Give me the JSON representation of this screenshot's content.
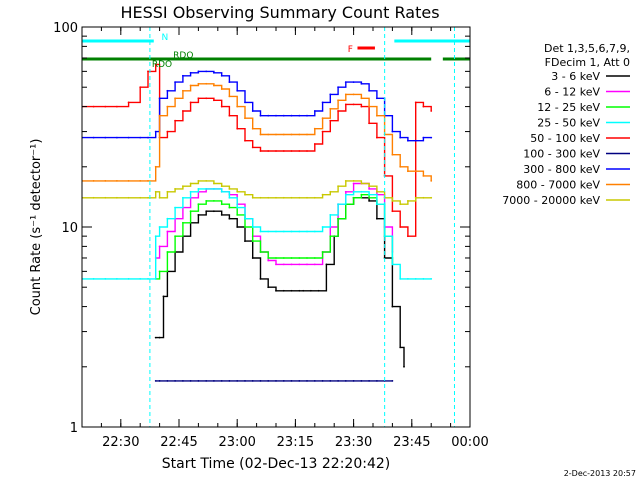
{
  "chart_data": {
    "type": "line",
    "title": "HESSI Observing Summary Count Rates",
    "xlabel": "Start Time (02-Dec-13 22:20:42)",
    "ylabel": "Count Rate (s⁻¹ detector⁻¹)",
    "yscale": "log",
    "ylim": [
      1,
      100
    ],
    "xlim": [
      0,
      100
    ],
    "x_unit": "minutes after 22:20",
    "x_ticks": [
      {
        "label": "22:30",
        "x": 10
      },
      {
        "label": "22:45",
        "x": 25
      },
      {
        "label": "23:00",
        "x": 40
      },
      {
        "label": "23:15",
        "x": 55
      },
      {
        "label": "23:30",
        "x": 70
      },
      {
        "label": "23:45",
        "x": 85
      },
      {
        "label": "00:00",
        "x": 100
      }
    ],
    "y_ticks": [
      {
        "label": "1",
        "y": 1
      },
      {
        "label": "10",
        "y": 10
      },
      {
        "label": "100",
        "y": 100
      }
    ],
    "legend_title_lines": [
      "Det 1,3,5,6,7,9,",
      "FDecim 1, Att 0"
    ],
    "legend_position": "right",
    "footer_date": "2-Dec-2013 20:57",
    "series": [
      {
        "name": "3 - 6 keV",
        "color": "#000000",
        "x": [
          19,
          20,
          21,
          22,
          24,
          26,
          28,
          30,
          32,
          34,
          36,
          38,
          40,
          42,
          44,
          46,
          48,
          50,
          52,
          54,
          56,
          57,
          59,
          61,
          63,
          65,
          66,
          68,
          70,
          72,
          74,
          76,
          78,
          80,
          82,
          83
        ],
        "y": [
          2.8,
          2.8,
          4.5,
          6.0,
          7.5,
          9.0,
          10.5,
          11.5,
          12.0,
          12.0,
          11.5,
          11.0,
          10.0,
          8.5,
          7.0,
          5.5,
          5.0,
          4.8,
          4.8,
          4.8,
          4.8,
          4.8,
          4.8,
          4.8,
          6.5,
          9.0,
          11.0,
          13.0,
          14.0,
          14.0,
          13.5,
          11.0,
          7.0,
          4.0,
          2.5,
          2.0
        ]
      },
      {
        "name": "6 - 12 keV",
        "color": "#ff00ff",
        "x": [
          19,
          20,
          22,
          24,
          26,
          28,
          30,
          32,
          34,
          36,
          38,
          40,
          42,
          44,
          46,
          48,
          50,
          52,
          54,
          56,
          58,
          60,
          62,
          64,
          66,
          68,
          70,
          72,
          74,
          76,
          78,
          80
        ],
        "y": [
          7.0,
          8.0,
          9.5,
          11.0,
          12.5,
          14.0,
          15.0,
          15.5,
          15.5,
          15.0,
          14.5,
          13.0,
          11.0,
          9.0,
          7.5,
          6.8,
          6.5,
          6.5,
          6.5,
          6.5,
          6.5,
          6.5,
          7.5,
          10.0,
          13.0,
          15.0,
          16.5,
          16.5,
          15.5,
          14.5,
          10.0,
          7.5
        ]
      },
      {
        "name": "12 - 25 keV",
        "color": "#00ff00",
        "x": [
          19,
          20,
          22,
          24,
          26,
          28,
          30,
          32,
          34,
          36,
          38,
          40,
          42,
          44,
          46,
          48,
          50,
          52,
          54,
          56,
          58,
          60,
          62,
          64,
          66,
          68,
          70,
          72,
          74,
          76,
          78,
          80
        ],
        "y": [
          5.5,
          6.0,
          7.5,
          9.0,
          10.5,
          12.0,
          13.0,
          13.5,
          13.5,
          13.0,
          12.5,
          11.5,
          10.0,
          8.5,
          7.5,
          7.0,
          7.0,
          7.0,
          7.0,
          7.0,
          7.0,
          7.0,
          7.5,
          9.0,
          11.0,
          13.0,
          14.0,
          14.5,
          14.0,
          13.0,
          9.0,
          6.5
        ]
      },
      {
        "name": "25 - 50 keV",
        "color": "#00ffff",
        "x": [
          0,
          3,
          6,
          9,
          12,
          15,
          17,
          19,
          20,
          22,
          24,
          26,
          28,
          30,
          32,
          34,
          36,
          38,
          40,
          42,
          44,
          46,
          48,
          50,
          52,
          54,
          56,
          58,
          60,
          62,
          64,
          66,
          68,
          70,
          72,
          74,
          76,
          78,
          80,
          82,
          84,
          86,
          88,
          90
        ],
        "y": [
          5.5,
          5.5,
          5.5,
          5.5,
          5.5,
          5.5,
          5.5,
          9.0,
          10.0,
          11.0,
          12.5,
          14.0,
          15.0,
          15.5,
          15.5,
          15.5,
          15.0,
          14.0,
          12.5,
          11.0,
          10.0,
          9.5,
          9.5,
          9.5,
          9.5,
          9.5,
          9.5,
          9.5,
          9.5,
          10.0,
          11.5,
          13.0,
          14.5,
          15.0,
          15.0,
          14.5,
          13.0,
          9.0,
          6.5,
          5.5,
          5.5,
          5.5,
          5.5,
          5.5
        ]
      },
      {
        "name": "50 - 100 keV",
        "color": "#ff0000",
        "x": [
          0,
          3,
          6,
          9,
          12,
          15,
          17,
          19,
          20,
          22,
          24,
          26,
          28,
          30,
          32,
          34,
          36,
          38,
          40,
          42,
          44,
          46,
          48,
          50,
          52,
          54,
          56,
          58,
          60,
          62,
          64,
          66,
          68,
          70,
          72,
          74,
          76,
          78,
          80,
          82,
          84,
          86,
          88,
          90
        ],
        "y": [
          40,
          40,
          40,
          40,
          42,
          50,
          60,
          65,
          28,
          30,
          34,
          38,
          42,
          44,
          44,
          43,
          40,
          36,
          31,
          27,
          25,
          24,
          24,
          24,
          24,
          24,
          24,
          24,
          26,
          30,
          34,
          38,
          41,
          41,
          40,
          33,
          28,
          18,
          12,
          10,
          9,
          42,
          40,
          38
        ]
      },
      {
        "name": "100 - 300 keV",
        "color": "#000080",
        "x": [
          19,
          20,
          22,
          24,
          26,
          28,
          30,
          32,
          34,
          36,
          38,
          40,
          42,
          44,
          46,
          48,
          50,
          52,
          54,
          56,
          58,
          60,
          62,
          64,
          66,
          68,
          70,
          72,
          74,
          76,
          78,
          80
        ],
        "y": [
          1.7,
          1.7,
          1.7,
          1.7,
          1.7,
          1.7,
          1.7,
          1.7,
          1.7,
          1.7,
          1.7,
          1.7,
          1.7,
          1.7,
          1.7,
          1.7,
          1.7,
          1.7,
          1.7,
          1.7,
          1.7,
          1.7,
          1.7,
          1.7,
          1.7,
          1.7,
          1.7,
          1.7,
          1.7,
          1.7,
          1.7,
          1.7
        ]
      },
      {
        "name": "300 - 800 keV",
        "color": "#0000ff",
        "x": [
          0,
          3,
          6,
          9,
          12,
          15,
          17,
          19,
          20,
          22,
          24,
          26,
          28,
          30,
          32,
          34,
          36,
          38,
          40,
          42,
          44,
          46,
          48,
          50,
          52,
          54,
          56,
          58,
          60,
          62,
          64,
          66,
          68,
          70,
          72,
          74,
          76,
          78,
          80,
          82,
          84,
          86,
          88,
          90
        ],
        "y": [
          28,
          28,
          28,
          28,
          28,
          28,
          28,
          30,
          44,
          48,
          53,
          57,
          59,
          60,
          60,
          59,
          57,
          53,
          48,
          42,
          38,
          36,
          36,
          36,
          36,
          36,
          36,
          36,
          38,
          42,
          46,
          50,
          53,
          53,
          52,
          48,
          44,
          36,
          30,
          28,
          27,
          27,
          28,
          28
        ]
      },
      {
        "name": "800 - 7000 keV",
        "color": "#ff8000",
        "x": [
          0,
          3,
          6,
          9,
          12,
          15,
          17,
          19,
          20,
          22,
          24,
          26,
          28,
          30,
          32,
          34,
          36,
          38,
          40,
          42,
          44,
          46,
          48,
          50,
          52,
          54,
          56,
          58,
          60,
          62,
          64,
          66,
          68,
          70,
          72,
          74,
          76,
          78,
          80,
          82,
          84,
          86,
          88,
          90
        ],
        "y": [
          17,
          17,
          17,
          17,
          17,
          17,
          17,
          20,
          36,
          40,
          44,
          48,
          51,
          52,
          52,
          51,
          49,
          45,
          40,
          35,
          31,
          29,
          29,
          29,
          29,
          29,
          29,
          29,
          31,
          35,
          39,
          43,
          46,
          46,
          44,
          40,
          36,
          29,
          23,
          20,
          19,
          19,
          18,
          17
        ]
      },
      {
        "name": "7000 - 20000 keV",
        "color": "#c8c800",
        "x": [
          0,
          3,
          6,
          9,
          12,
          15,
          17,
          19,
          20,
          22,
          24,
          26,
          28,
          30,
          32,
          34,
          36,
          38,
          40,
          42,
          44,
          46,
          48,
          50,
          52,
          54,
          56,
          58,
          60,
          62,
          64,
          66,
          68,
          70,
          72,
          74,
          76,
          78,
          80,
          82,
          84,
          86,
          88,
          90
        ],
        "y": [
          14,
          14,
          14,
          14,
          14,
          14,
          14,
          15,
          14,
          15,
          15.5,
          16,
          16.5,
          17,
          17,
          16.5,
          16,
          15.5,
          15,
          14.5,
          14,
          14,
          14,
          14,
          14,
          14,
          14,
          14,
          14,
          14.5,
          15,
          16,
          17,
          17,
          16.5,
          16,
          15,
          14,
          13.5,
          13,
          13.5,
          14,
          14,
          14
        ]
      }
    ],
    "annotations": [
      {
        "text": "N",
        "color": "#00ffff"
      },
      {
        "text": "RDO",
        "color": "#008000"
      },
      {
        "text": "RDO",
        "color": "#008000"
      },
      {
        "text": "F",
        "color": "#ff0000"
      }
    ],
    "grid": false
  }
}
